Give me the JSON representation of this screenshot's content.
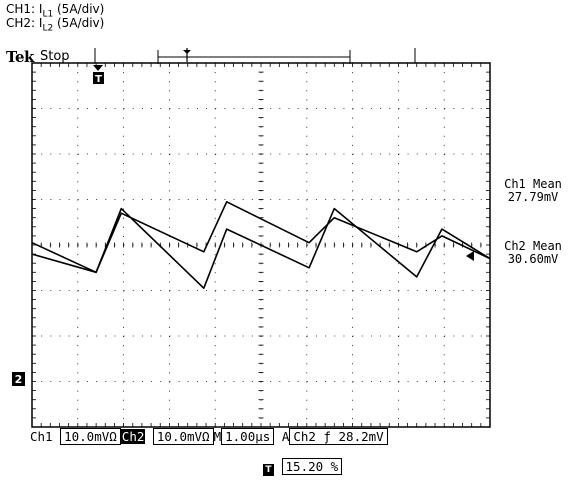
{
  "caption": {
    "ch1": {
      "prefix": "CH1: I",
      "sub": "L1",
      "suffix": " (5A/div)"
    },
    "ch2": {
      "prefix": "CH2: I",
      "sub": "L2",
      "suffix": " (5A/div)"
    }
  },
  "scope": {
    "brand": "Tek",
    "state": "Stop",
    "trigger_marker": "T",
    "ground_marker": "2"
  },
  "measurements": [
    {
      "label": "Ch1 Mean",
      "value": "27.79mV"
    },
    {
      "label": "Ch2 Mean",
      "value": "30.60mV"
    }
  ],
  "status_bar": {
    "ch1_label": "Ch1",
    "ch1_scale": "10.0mVΩ",
    "ch2_label": "Ch2",
    "ch2_scale": "10.0mVΩ",
    "time_prefix": "M",
    "timebase": "1.00µs",
    "trigger_prefix": "A",
    "trigger_source": "Ch2",
    "trigger_slope": "ƒ",
    "trigger_level": "28.2mV"
  },
  "trigger_position": "15.20 %",
  "chart_data": {
    "type": "line",
    "xlabel": "",
    "ylabel": "",
    "x_unit": "div",
    "y_unit": "div",
    "xlim": [
      0,
      10
    ],
    "ylim": [
      -4,
      4
    ],
    "grid": true,
    "series": [
      {
        "x": [
          0,
          1.4,
          1.95,
          3.75,
          4.25,
          6.05,
          6.6,
          8.4,
          8.95,
          10
        ],
        "y": [
          0.05,
          -0.6,
          0.7,
          -0.15,
          0.95,
          0.05,
          0.6,
          -0.15,
          0.2,
          -0.3
        ]
      },
      {
        "x": [
          0,
          1.4,
          1.95,
          3.75,
          4.25,
          6.05,
          6.6,
          8.4,
          8.95,
          10
        ],
        "y": [
          -0.2,
          -0.6,
          0.8,
          -0.95,
          0.35,
          -0.5,
          0.8,
          -0.7,
          0.35,
          -0.3
        ]
      }
    ]
  }
}
